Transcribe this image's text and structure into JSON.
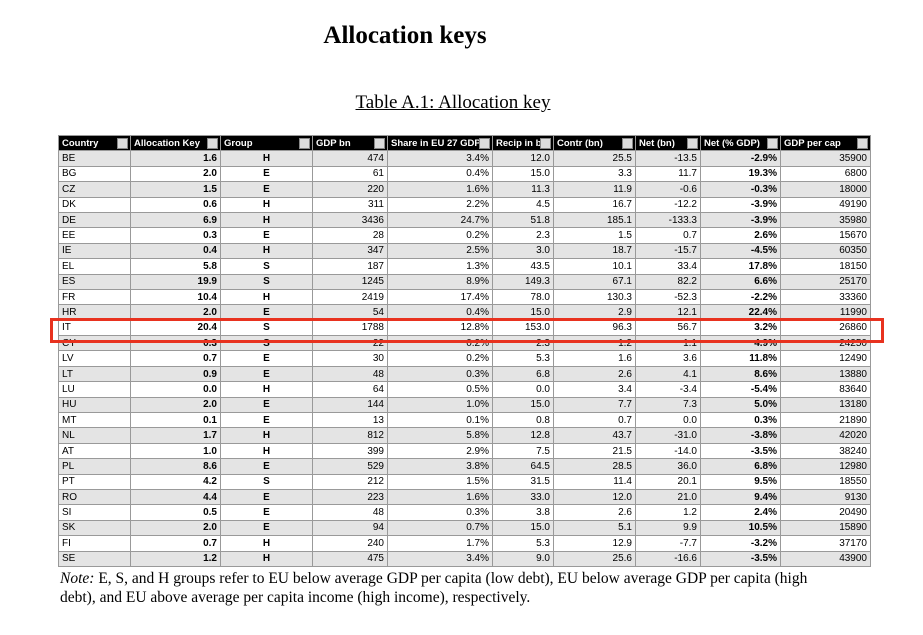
{
  "title": "Allocation keys",
  "caption": "Table A.1: Allocation key",
  "table": {
    "header": [
      "Country",
      "Allocation Key",
      "Group",
      "GDP bn",
      "Share in EU 27 GDP",
      "Recip in bn",
      "Contr (bn)",
      "Net (bn)",
      "Net (% GDP)",
      "GDP per cap"
    ],
    "rows": [
      [
        "BE",
        "1.6",
        "H",
        "474",
        "3.4%",
        "12.0",
        "25.5",
        "-13.5",
        "-2.9%",
        "35900"
      ],
      [
        "BG",
        "2.0",
        "E",
        "61",
        "0.4%",
        "15.0",
        "3.3",
        "11.7",
        "19.3%",
        "6800"
      ],
      [
        "CZ",
        "1.5",
        "E",
        "220",
        "1.6%",
        "11.3",
        "11.9",
        "-0.6",
        "-0.3%",
        "18000"
      ],
      [
        "DK",
        "0.6",
        "H",
        "311",
        "2.2%",
        "4.5",
        "16.7",
        "-12.2",
        "-3.9%",
        "49190"
      ],
      [
        "DE",
        "6.9",
        "H",
        "3436",
        "24.7%",
        "51.8",
        "185.1",
        "-133.3",
        "-3.9%",
        "35980"
      ],
      [
        "EE",
        "0.3",
        "E",
        "28",
        "0.2%",
        "2.3",
        "1.5",
        "0.7",
        "2.6%",
        "15670"
      ],
      [
        "IE",
        "0.4",
        "H",
        "347",
        "2.5%",
        "3.0",
        "18.7",
        "-15.7",
        "-4.5%",
        "60350"
      ],
      [
        "EL",
        "5.8",
        "S",
        "187",
        "1.3%",
        "43.5",
        "10.1",
        "33.4",
        "17.8%",
        "18150"
      ],
      [
        "ES",
        "19.9",
        "S",
        "1245",
        "8.9%",
        "149.3",
        "67.1",
        "82.2",
        "6.6%",
        "25170"
      ],
      [
        "FR",
        "10.4",
        "H",
        "2419",
        "17.4%",
        "78.0",
        "130.3",
        "-52.3",
        "-2.2%",
        "33360"
      ],
      [
        "HR",
        "2.0",
        "E",
        "54",
        "0.4%",
        "15.0",
        "2.9",
        "12.1",
        "22.4%",
        "11990"
      ],
      [
        "IT",
        "20.4",
        "S",
        "1788",
        "12.8%",
        "153.0",
        "96.3",
        "56.7",
        "3.2%",
        "26860"
      ],
      [
        "CY",
        "0.3",
        "S",
        "22",
        "0.2%",
        "2.3",
        "1.2",
        "1.1",
        "4.9%",
        "24250"
      ],
      [
        "LV",
        "0.7",
        "E",
        "30",
        "0.2%",
        "5.3",
        "1.6",
        "3.6",
        "11.8%",
        "12490"
      ],
      [
        "LT",
        "0.9",
        "E",
        "48",
        "0.3%",
        "6.8",
        "2.6",
        "4.1",
        "8.6%",
        "13880"
      ],
      [
        "LU",
        "0.0",
        "H",
        "64",
        "0.5%",
        "0.0",
        "3.4",
        "-3.4",
        "-5.4%",
        "83640"
      ],
      [
        "HU",
        "2.0",
        "E",
        "144",
        "1.0%",
        "15.0",
        "7.7",
        "7.3",
        "5.0%",
        "13180"
      ],
      [
        "MT",
        "0.1",
        "E",
        "13",
        "0.1%",
        "0.8",
        "0.7",
        "0.0",
        "0.3%",
        "21890"
      ],
      [
        "NL",
        "1.7",
        "H",
        "812",
        "5.8%",
        "12.8",
        "43.7",
        "-31.0",
        "-3.8%",
        "42020"
      ],
      [
        "AT",
        "1.0",
        "H",
        "399",
        "2.9%",
        "7.5",
        "21.5",
        "-14.0",
        "-3.5%",
        "38240"
      ],
      [
        "PL",
        "8.6",
        "E",
        "529",
        "3.8%",
        "64.5",
        "28.5",
        "36.0",
        "6.8%",
        "12980"
      ],
      [
        "PT",
        "4.2",
        "S",
        "212",
        "1.5%",
        "31.5",
        "11.4",
        "20.1",
        "9.5%",
        "18550"
      ],
      [
        "RO",
        "4.4",
        "E",
        "223",
        "1.6%",
        "33.0",
        "12.0",
        "21.0",
        "9.4%",
        "9130"
      ],
      [
        "SI",
        "0.5",
        "E",
        "48",
        "0.3%",
        "3.8",
        "2.6",
        "1.2",
        "2.4%",
        "20490"
      ],
      [
        "SK",
        "2.0",
        "E",
        "94",
        "0.7%",
        "15.0",
        "5.1",
        "9.9",
        "10.5%",
        "15890"
      ],
      [
        "FI",
        "0.7",
        "H",
        "240",
        "1.7%",
        "5.3",
        "12.9",
        "-7.7",
        "-3.2%",
        "37170"
      ],
      [
        "SE",
        "1.2",
        "H",
        "475",
        "3.4%",
        "9.0",
        "25.6",
        "-16.6",
        "-3.5%",
        "43900"
      ]
    ]
  },
  "note": {
    "label": "Note:",
    "text": " E, S, and H groups refer to EU below average GDP per capita (low debt), EU below average GDP per capita (high debt), and EU above average per capita income (high income), respectively."
  }
}
